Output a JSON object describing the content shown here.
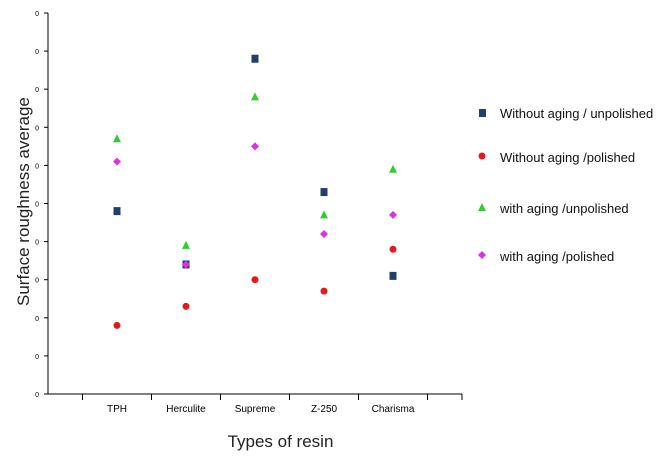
{
  "chart_data": {
    "type": "scatter",
    "xlabel": "Types of resin",
    "ylabel": "Surface roughness average",
    "categories": [
      "TPH",
      "Herculite",
      "Supreme",
      "Z-250",
      "Charisma"
    ],
    "y_tick_labels": [
      "0",
      "0",
      "0",
      "0",
      "0",
      "0",
      "0",
      "0",
      "0",
      "0",
      "0"
    ],
    "ylim": [
      0,
      10
    ],
    "grid": false,
    "legend_position": "right",
    "series": [
      {
        "name": "Without aging / unpolished",
        "marker": "square",
        "color": "#1f3f6e",
        "values": [
          4.8,
          3.4,
          8.8,
          5.3,
          3.1
        ]
      },
      {
        "name": "Without aging /polished",
        "marker": "circle",
        "color": "#e31a1c",
        "values": [
          1.8,
          2.3,
          3.0,
          2.7,
          3.8
        ]
      },
      {
        "name": "with aging /unpolished",
        "marker": "triangle",
        "color": "#33cc33",
        "values": [
          6.7,
          3.9,
          7.8,
          4.7,
          5.9
        ]
      },
      {
        "name": "with aging /polished",
        "marker": "diamond",
        "color": "#e030e0",
        "values": [
          6.1,
          3.4,
          6.5,
          4.2,
          4.7
        ]
      }
    ]
  },
  "legend_labels": [
    "Without aging / unpolished",
    "Without aging /polished",
    "with aging /unpolished",
    "with aging /polished"
  ]
}
